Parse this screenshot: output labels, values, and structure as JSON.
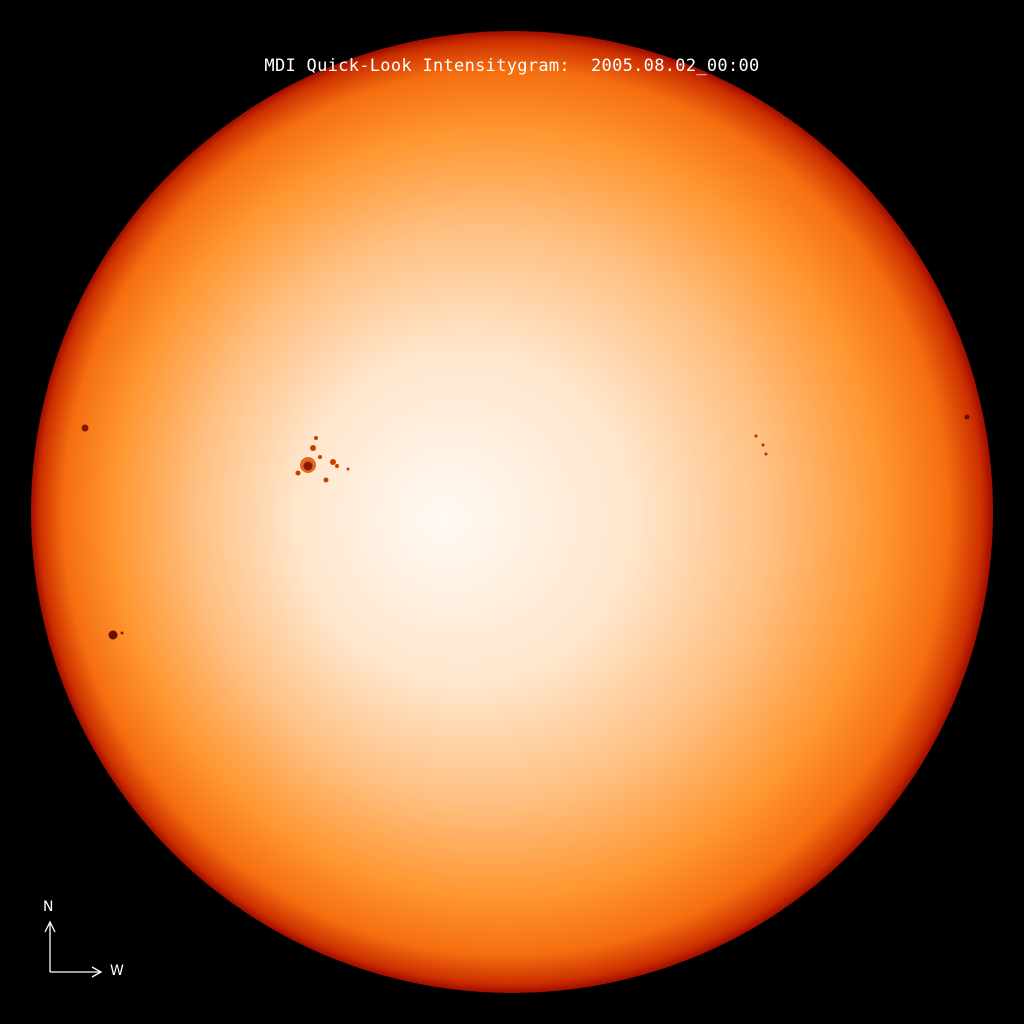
{
  "title": "MDI Quick-Look Intensitygram:  2005.08.02_00:00",
  "compass": {
    "north": "N",
    "west": "W"
  },
  "colors": {
    "background": "#000000",
    "disk_center": "#fffaf4",
    "disk_mid": "#ff9a30",
    "limb": "#b01000",
    "sunspot": "#8a1a00"
  }
}
